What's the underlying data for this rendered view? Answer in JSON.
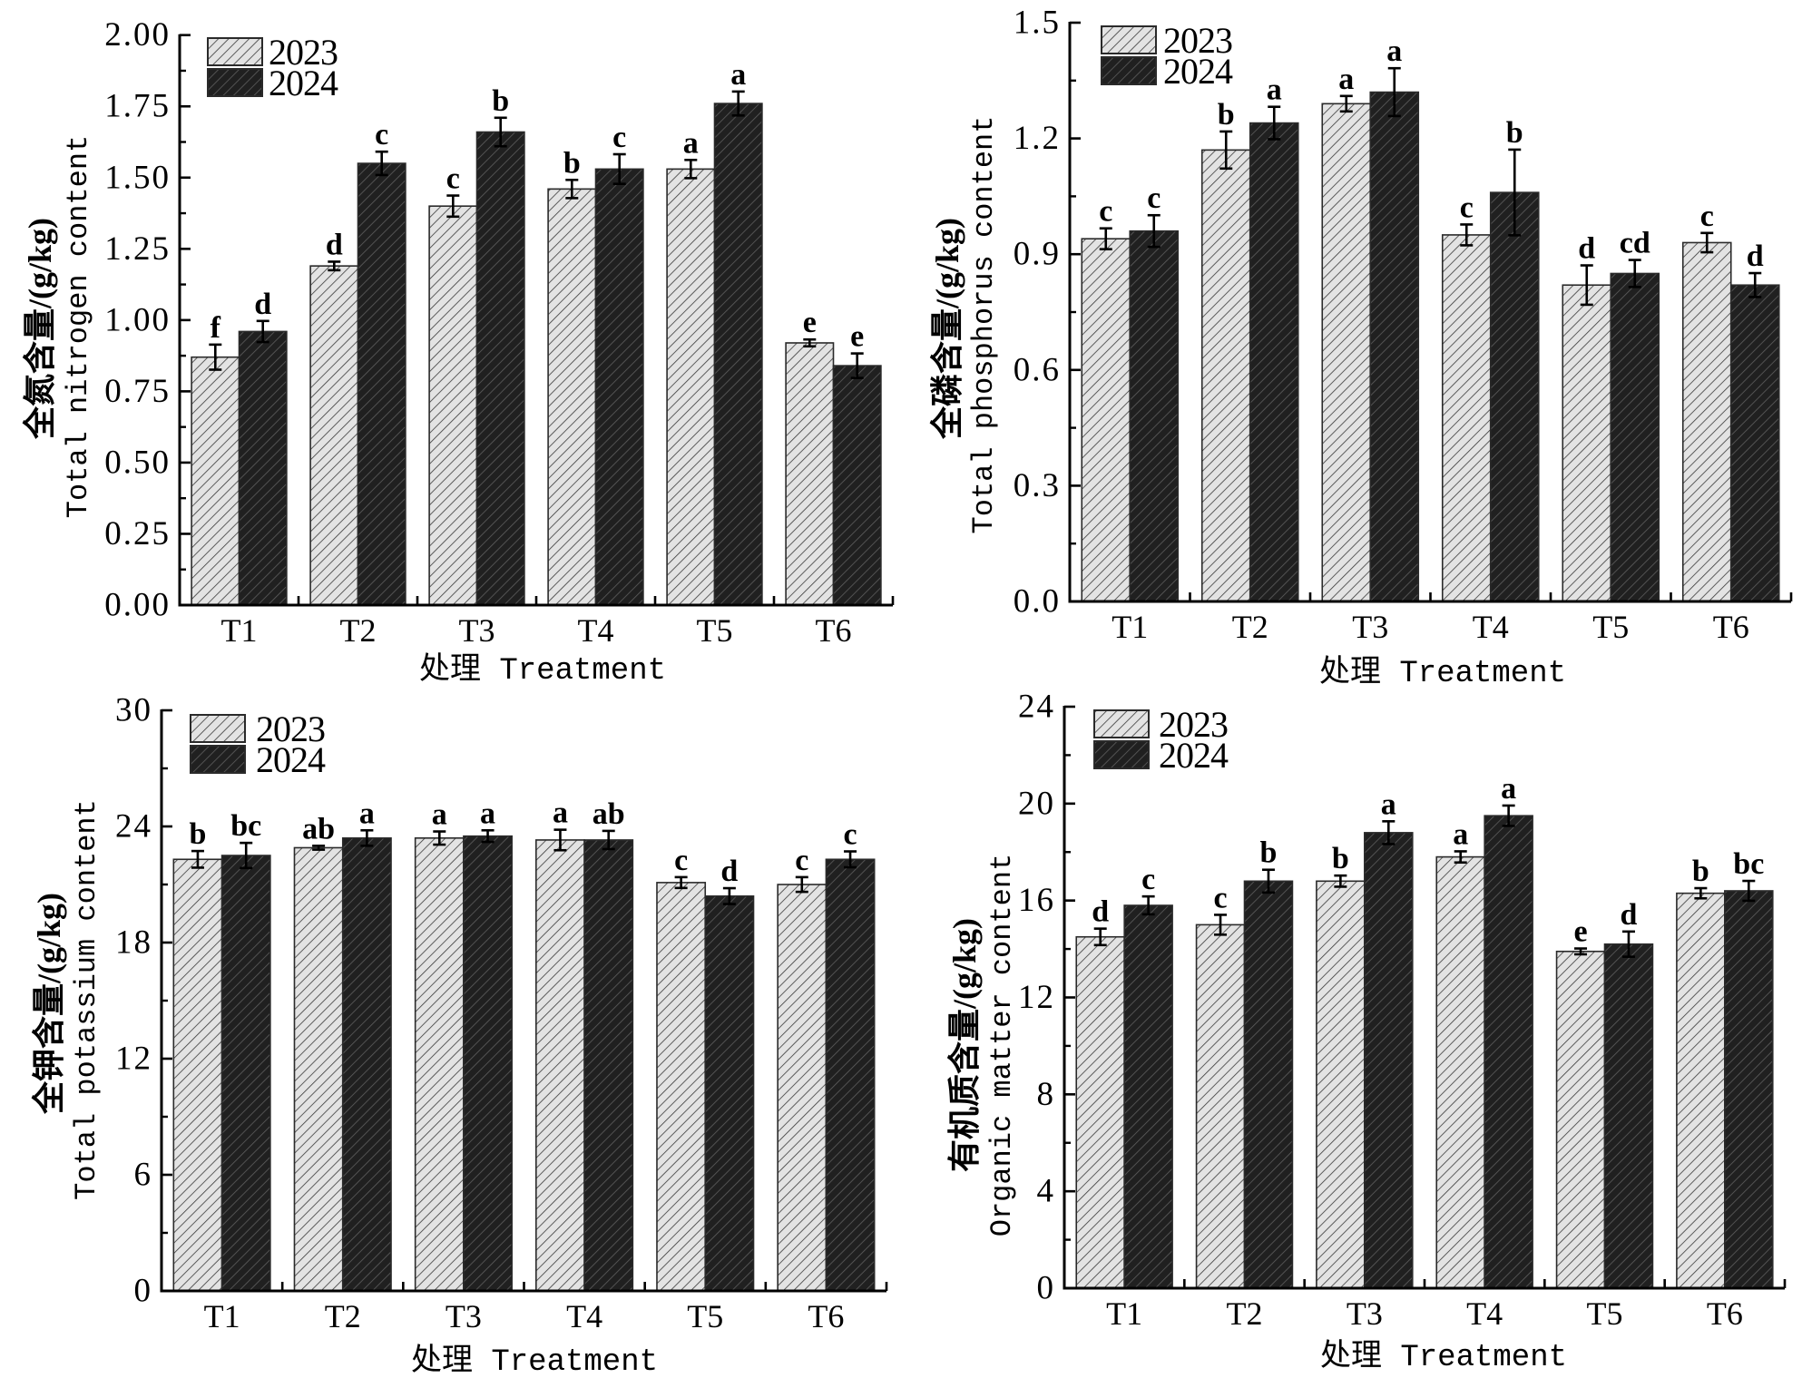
{
  "colors": {
    "series_fill": [
      "#e3e3e3",
      "#202020"
    ],
    "series_hatch": [
      "#3a3a3a",
      "#5e5e5e"
    ],
    "bar_outline": "#2a2a2a",
    "axis": "#000000",
    "error_bar": "#000000"
  },
  "chart_data": [
    {
      "type": "bar",
      "title": "",
      "xlabel": "处理 Treatment",
      "ylabel_cn": "全氮含量/(g/kg)",
      "ylabel_en": "Total nitrogen content",
      "categories": [
        "T1",
        "T2",
        "T3",
        "T4",
        "T5",
        "T6"
      ],
      "ylim": [
        0,
        2.0
      ],
      "yticks": [
        0,
        0.25,
        0.5,
        0.75,
        1.0,
        1.25,
        1.5,
        1.75,
        2.0
      ],
      "ytick_labels": [
        "0.00",
        "0.25",
        "0.50",
        "0.75",
        "1.00",
        "1.25",
        "1.50",
        "1.75",
        "2.00"
      ],
      "yminor_step": 0.125,
      "grid": false,
      "legend": {
        "position": "top-left",
        "entries": [
          "2023",
          "2024"
        ]
      },
      "series": [
        {
          "name": "2023",
          "values": [
            0.87,
            1.19,
            1.4,
            1.46,
            1.53,
            0.92
          ],
          "errors": [
            0.044,
            0.015,
            0.037,
            0.032,
            0.032,
            0.012
          ],
          "letters": [
            "f",
            "d",
            "c",
            "b",
            "a",
            "e"
          ]
        },
        {
          "name": "2024",
          "values": [
            0.96,
            1.55,
            1.66,
            1.53,
            1.76,
            0.84
          ],
          "errors": [
            0.037,
            0.041,
            0.05,
            0.052,
            0.042,
            0.043
          ],
          "letters": [
            "d",
            "c",
            "b",
            "c",
            "a",
            "e"
          ]
        }
      ]
    },
    {
      "type": "bar",
      "title": "",
      "xlabel": "处理 Treatment",
      "ylabel_cn": "全磷含量/(g/kg)",
      "ylabel_en": "Total phosphorus content",
      "categories": [
        "T1",
        "T2",
        "T3",
        "T4",
        "T5",
        "T6"
      ],
      "ylim": [
        0,
        1.5
      ],
      "yticks": [
        0,
        0.3,
        0.6,
        0.9,
        1.2,
        1.5
      ],
      "ytick_labels": [
        "0.0",
        "0.3",
        "0.6",
        "0.9",
        "1.2",
        "1.5"
      ],
      "yminor_step": 0.15,
      "grid": false,
      "legend": {
        "position": "top-left",
        "entries": [
          "2023",
          "2024"
        ]
      },
      "series": [
        {
          "name": "2023",
          "values": [
            0.94,
            1.17,
            1.29,
            0.95,
            0.82,
            0.93
          ],
          "errors": [
            0.027,
            0.048,
            0.02,
            0.027,
            0.051,
            0.025
          ],
          "letters": [
            "c",
            "b",
            "a",
            "c",
            "d",
            "c"
          ]
        },
        {
          "name": "2024",
          "values": [
            0.96,
            1.24,
            1.32,
            1.06,
            0.85,
            0.82
          ],
          "errors": [
            0.041,
            0.042,
            0.062,
            0.111,
            0.035,
            0.031
          ],
          "letters": [
            "c",
            "a",
            "a",
            "b",
            "cd",
            "d"
          ]
        }
      ]
    },
    {
      "type": "bar",
      "title": "",
      "xlabel": "处理 Treatment",
      "ylabel_cn": "全钾含量/(g/kg)",
      "ylabel_en": "Total potassium content",
      "categories": [
        "T1",
        "T2",
        "T3",
        "T4",
        "T5",
        "T6"
      ],
      "ylim": [
        0,
        30
      ],
      "yticks": [
        0,
        6,
        12,
        18,
        24,
        30
      ],
      "ytick_labels": [
        "0",
        "6",
        "12",
        "18",
        "24",
        "30"
      ],
      "yminor_step": 3,
      "grid": false,
      "legend": {
        "position": "top-left",
        "entries": [
          "2023",
          "2024"
        ]
      },
      "series": [
        {
          "name": "2023",
          "values": [
            22.3,
            22.9,
            23.4,
            23.3,
            21.1,
            21.0
          ],
          "errors": [
            0.43,
            0.1,
            0.34,
            0.53,
            0.28,
            0.38
          ],
          "letters": [
            "b",
            "ab",
            "a",
            "a",
            "c",
            "c"
          ]
        },
        {
          "name": "2024",
          "values": [
            22.5,
            23.4,
            23.5,
            23.3,
            20.4,
            22.3
          ],
          "errors": [
            0.65,
            0.4,
            0.3,
            0.47,
            0.41,
            0.41
          ],
          "letters": [
            "bc",
            "a",
            "a",
            "ab",
            "d",
            "c"
          ]
        }
      ]
    },
    {
      "type": "bar",
      "title": "",
      "xlabel": "处理 Treatment",
      "ylabel_cn": "有机质含量/(g/kg)",
      "ylabel_en": "Organic matter content",
      "categories": [
        "T1",
        "T2",
        "T3",
        "T4",
        "T5",
        "T6"
      ],
      "ylim": [
        0,
        24
      ],
      "yticks": [
        0,
        4,
        8,
        12,
        16,
        20,
        24
      ],
      "ytick_labels": [
        "0",
        "4",
        "8",
        "12",
        "16",
        "20",
        "24"
      ],
      "yminor_step": 2,
      "grid": false,
      "legend": {
        "position": "top-left",
        "entries": [
          "2023",
          "2024"
        ]
      },
      "series": [
        {
          "name": "2023",
          "values": [
            14.5,
            15.0,
            16.8,
            17.8,
            13.9,
            16.3
          ],
          "errors": [
            0.34,
            0.41,
            0.23,
            0.23,
            0.12,
            0.21
          ],
          "letters": [
            "d",
            "c",
            "b",
            "a",
            "e",
            "b"
          ]
        },
        {
          "name": "2024",
          "values": [
            15.8,
            16.8,
            18.8,
            19.5,
            14.2,
            16.4
          ],
          "errors": [
            0.37,
            0.47,
            0.47,
            0.42,
            0.52,
            0.41
          ],
          "letters": [
            "c",
            "b",
            "a",
            "a",
            "d",
            "bc"
          ]
        }
      ]
    }
  ]
}
